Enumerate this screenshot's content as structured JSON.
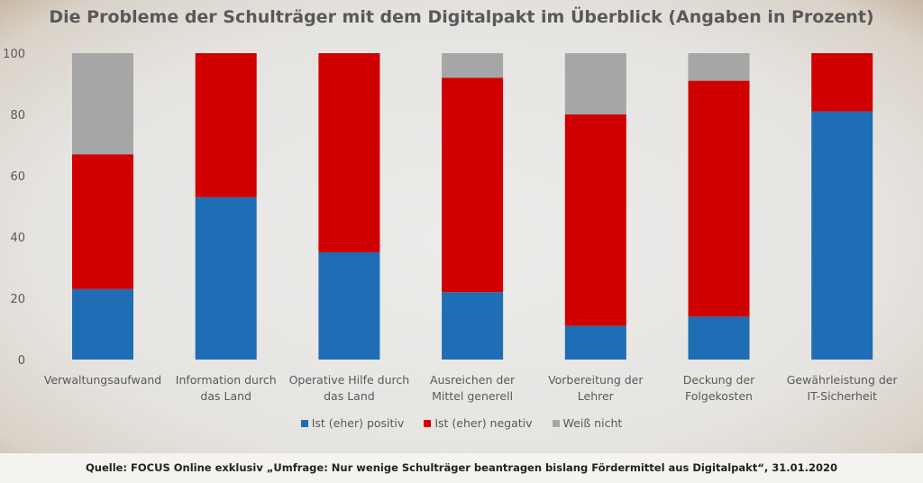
{
  "chart_data": {
    "type": "bar",
    "stacked": true,
    "title": "Die Probleme der Schulträger mit dem Digitalpakt im Überblick (Angaben in Prozent)",
    "categories": [
      [
        "Verwaltungsaufwand"
      ],
      [
        "Information durch",
        "das Land"
      ],
      [
        "Operative Hilfe durch",
        "das Land"
      ],
      [
        "Ausreichen der",
        "Mittel generell"
      ],
      [
        "Vorbereitung der",
        "Lehrer"
      ],
      [
        "Deckung der",
        "Folgekosten"
      ],
      [
        "Gewährleistung der",
        "IT-Sicherheit"
      ]
    ],
    "series": [
      {
        "name": "Ist (eher) positiv",
        "color": "#1f6db5",
        "values": [
          23,
          53,
          35,
          22,
          11,
          14,
          81
        ]
      },
      {
        "name": "Ist (eher) negativ",
        "color": "#d10000",
        "values": [
          44,
          47,
          65,
          70,
          69,
          77,
          19
        ]
      },
      {
        "name": "Weiß nicht",
        "color": "#a6a6a6",
        "values": [
          33,
          0,
          0,
          8,
          20,
          9,
          0
        ]
      }
    ],
    "ylim": [
      0,
      100
    ],
    "yticks": [
      "0",
      "20",
      "40",
      "60",
      "80",
      "100"
    ],
    "grid": false,
    "legend": "bottom"
  },
  "footer": {
    "source": "Quelle: FOCUS Online exklusiv „Umfrage: Nur wenige Schulträger beantragen bislang Fördermittel aus Digitalpakt“, 31.01.2020"
  }
}
